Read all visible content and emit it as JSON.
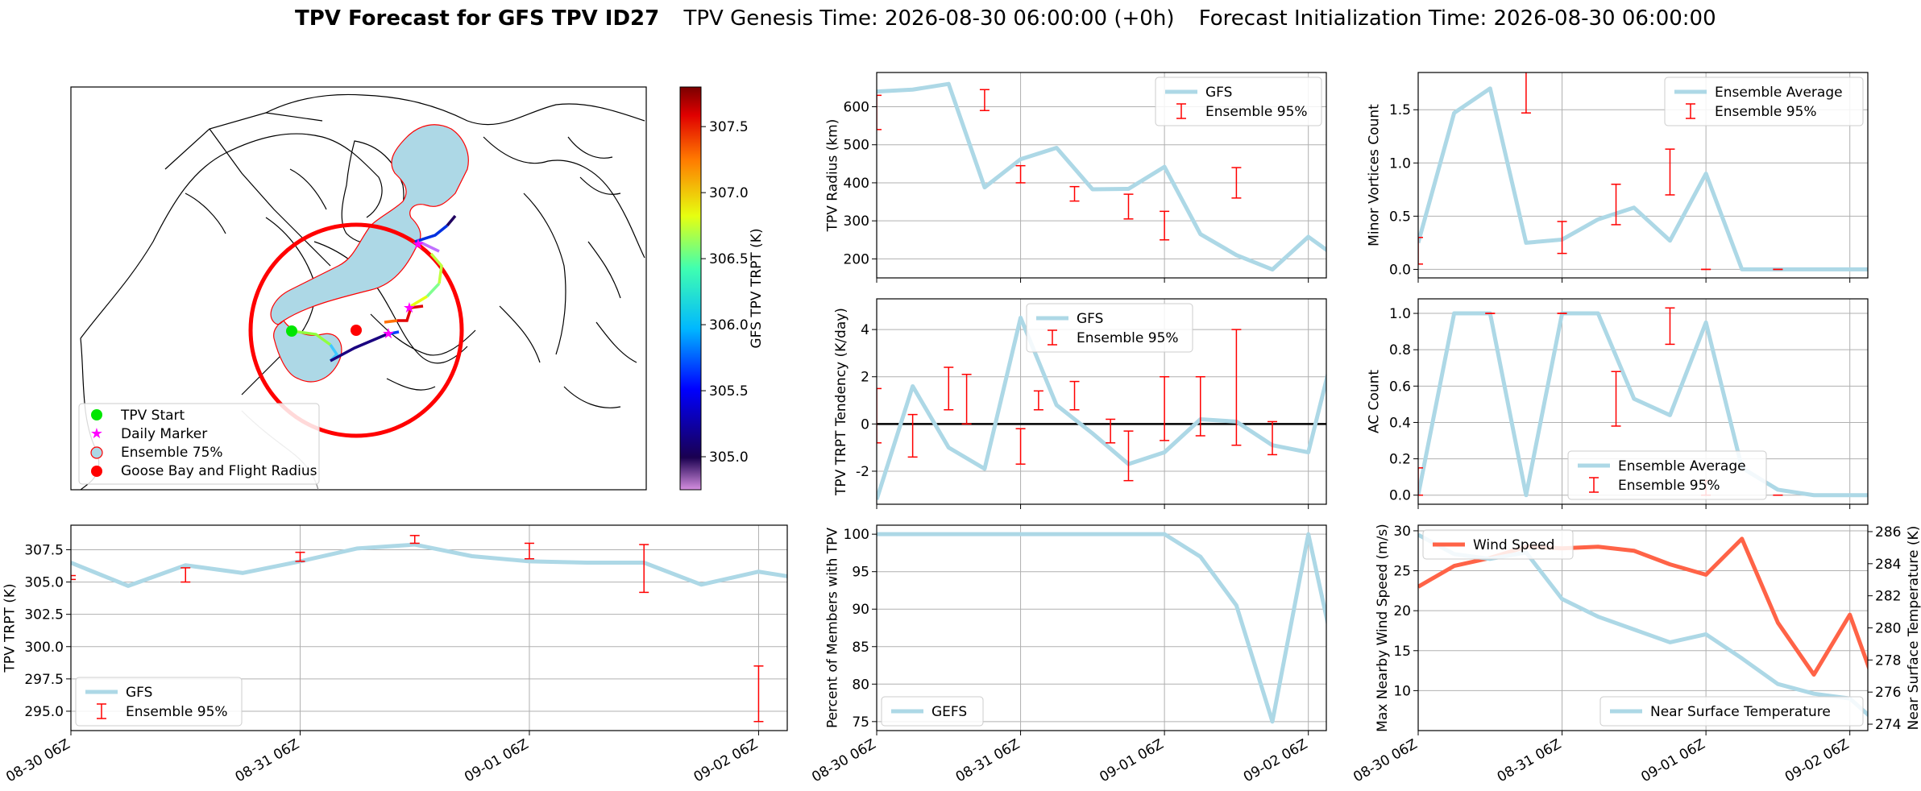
{
  "title": {
    "bold": "TPV Forecast for GFS TPV ID27",
    "genesis": "TPV Genesis Time: 2026-08-30 06:00:00 (+0h)",
    "init": "Forecast Initialization Time: 2026-08-30 06:00:00"
  },
  "colors": {
    "gfs": "#add8e6",
    "err": "#ff0000",
    "wind": "#ff6347",
    "temp_axis": "#4169e1",
    "zero": "#000000"
  },
  "map": {
    "legend": [
      "TPV Start",
      "Daily Marker",
      "Ensemble 75%",
      "Goose Bay and Flight Radius"
    ],
    "colorbar": {
      "label": "GFS TPV TRPT (K)",
      "ticks": [
        "305.0",
        "305.5",
        "306.0",
        "306.5",
        "307.0",
        "307.5"
      ],
      "range": [
        304.75,
        307.8
      ]
    }
  },
  "chart_data": [
    {
      "id": "radius",
      "type": "line",
      "ylabel": "TPV Radius (km)",
      "xlim": [
        0,
        12.5
      ],
      "ylim": [
        150,
        690
      ],
      "yticks": [
        200,
        300,
        400,
        500,
        600
      ],
      "xticks": [
        "08-30 06Z",
        "08-31 06Z",
        "09-01 06Z",
        "09-02 06Z"
      ],
      "legend": [
        "GFS",
        "Ensemble 95%"
      ],
      "legend_loc": "upper right",
      "series": [
        {
          "name": "GFS",
          "values": [
            640,
            645,
            660,
            388,
            462,
            492,
            383,
            384,
            442,
            265,
            210,
            172,
            258,
            190
          ]
        }
      ],
      "errorbars": [
        [
          0,
          540,
          630
        ],
        [
          3,
          590,
          645
        ],
        [
          4,
          400,
          445
        ],
        [
          5.5,
          352,
          390
        ],
        [
          7,
          305,
          370
        ],
        [
          8,
          250,
          325
        ],
        [
          10,
          360,
          440
        ]
      ]
    },
    {
      "id": "minor",
      "type": "line",
      "ylabel": "Minor Vortices Count",
      "xlim": [
        0,
        12.5
      ],
      "ylim": [
        -0.08,
        1.85
      ],
      "yticks": [
        0.0,
        0.5,
        1.0,
        1.5
      ],
      "xticks": [
        "08-30 06Z",
        "08-31 06Z",
        "09-01 06Z",
        "09-02 06Z"
      ],
      "legend": [
        "Ensemble Average",
        "Ensemble 95%"
      ],
      "legend_loc": "upper right",
      "series": [
        {
          "name": "Ensemble Average",
          "values": [
            0.25,
            1.47,
            1.7,
            0.25,
            0.28,
            0.47,
            0.58,
            0.27,
            0.9,
            0.0,
            0.0,
            0.0,
            0.0,
            0.0
          ]
        }
      ],
      "errorbars": [
        [
          0,
          0.05,
          0.3
        ],
        [
          3,
          1.47,
          1.88
        ],
        [
          4,
          0.15,
          0.45
        ],
        [
          5.5,
          0.42,
          0.8
        ],
        [
          7,
          0.7,
          1.13
        ],
        [
          8,
          0.0,
          0.0
        ],
        [
          10,
          0.0,
          0.0
        ]
      ]
    },
    {
      "id": "tendency",
      "type": "line",
      "ylabel": "TPV TRPT Tendency (K/day)",
      "xlim": [
        0,
        12.5
      ],
      "ylim": [
        -3.4,
        5.3
      ],
      "yticks": [
        -2,
        0,
        2,
        4
      ],
      "xticks": [
        "08-30 06Z",
        "08-31 06Z",
        "09-01 06Z",
        "09-02 06Z"
      ],
      "legend": [
        "GFS",
        "Ensemble 95%"
      ],
      "legend_loc": "upper center",
      "series": [
        {
          "name": "GFS",
          "values": [
            -3.2,
            1.6,
            -1.0,
            -1.9,
            4.5,
            0.8,
            -0.4,
            -1.7,
            -1.2,
            0.2,
            0.1,
            -0.9,
            -1.2,
            4.9
          ]
        }
      ],
      "errorbars": [
        [
          0,
          -0.8,
          1.5
        ],
        [
          1,
          -1.4,
          0.4
        ],
        [
          2,
          0.6,
          2.4
        ],
        [
          2.5,
          0.0,
          2.1
        ],
        [
          4,
          -1.7,
          -0.2
        ],
        [
          4.5,
          0.6,
          1.4
        ],
        [
          5.5,
          0.6,
          1.8
        ],
        [
          6.5,
          -0.8,
          0.2
        ],
        [
          7,
          -2.4,
          -0.3
        ],
        [
          8,
          -0.7,
          2.0
        ],
        [
          9,
          -0.5,
          2.0
        ],
        [
          10,
          -0.9,
          4.0
        ],
        [
          11,
          -1.3,
          0.1
        ]
      ]
    },
    {
      "id": "ac",
      "type": "line",
      "ylabel": "AC Count",
      "xlim": [
        0,
        12.5
      ],
      "ylim": [
        -0.05,
        1.08
      ],
      "yticks": [
        0.0,
        0.2,
        0.4,
        0.6,
        0.8,
        1.0
      ],
      "xticks": [
        "08-30 06Z",
        "08-31 06Z",
        "09-01 06Z",
        "09-02 06Z"
      ],
      "legend": [
        "Ensemble Average",
        "Ensemble 95%"
      ],
      "legend_loc": "lower center",
      "series": [
        {
          "name": "Ensemble Average",
          "values": [
            0.0,
            1.0,
            1.0,
            0.0,
            1.0,
            1.0,
            0.53,
            0.44,
            0.95,
            0.15,
            0.03,
            0.0,
            0.0,
            0.0
          ]
        }
      ],
      "errorbars": [
        [
          0,
          0.0,
          0.15
        ],
        [
          2,
          1.0,
          1.0
        ],
        [
          4,
          1.0,
          1.0
        ],
        [
          5.5,
          0.38,
          0.68
        ],
        [
          7,
          0.83,
          1.03
        ],
        [
          8,
          0.0,
          0.08
        ],
        [
          10,
          0.0,
          0.0
        ]
      ]
    },
    {
      "id": "trpt",
      "type": "line",
      "ylabel": "TPV TRPT (K)",
      "xlim": [
        0,
        12.5
      ],
      "ylim": [
        293.5,
        309.4
      ],
      "yticks": [
        295.0,
        297.5,
        300.0,
        302.5,
        305.0,
        307.5
      ],
      "xticks": [
        "08-30 06Z",
        "08-31 06Z",
        "09-01 06Z",
        "09-02 06Z"
      ],
      "legend": [
        "GFS",
        "Ensemble 95%"
      ],
      "legend_loc": "lower left",
      "series": [
        {
          "name": "GFS",
          "values": [
            306.5,
            304.7,
            306.3,
            305.7,
            306.6,
            307.6,
            307.9,
            307.0,
            306.6,
            306.5,
            306.5,
            304.8,
            305.8,
            305.1
          ]
        }
      ],
      "errorbars": [
        [
          0,
          305.2,
          305.5
        ],
        [
          2,
          305.0,
          306.1
        ],
        [
          4,
          306.6,
          307.3
        ],
        [
          6,
          308.0,
          308.6
        ],
        [
          8,
          306.8,
          308.0
        ],
        [
          10,
          304.2,
          307.9
        ],
        [
          12,
          294.2,
          298.5
        ]
      ]
    },
    {
      "id": "members",
      "type": "line",
      "ylabel": "Percent of Members with TPV",
      "xlim": [
        0,
        12.5
      ],
      "ylim": [
        73.8,
        101.2
      ],
      "yticks": [
        75,
        80,
        85,
        90,
        95,
        100
      ],
      "xticks": [
        "08-30 06Z",
        "08-31 06Z",
        "09-01 06Z",
        "09-02 06Z"
      ],
      "legend": [
        "GEFS"
      ],
      "legend_loc": "lower left",
      "series": [
        {
          "name": "GEFS",
          "values": [
            100,
            100,
            100,
            100,
            100,
            100,
            100,
            100,
            100,
            97,
            90.5,
            75,
            100,
            78
          ]
        }
      ],
      "errorbars": []
    },
    {
      "id": "wind",
      "type": "line",
      "ylabel": "Max Nearby Wind Speed (m/s)",
      "y2label": "Near Surface Temperature (K)",
      "xlim": [
        0,
        12.5
      ],
      "ylim": [
        5,
        30.7
      ],
      "y2lim": [
        273.6,
        286.4
      ],
      "yticks": [
        10,
        15,
        20,
        25,
        30
      ],
      "y2ticks": [
        274,
        276,
        278,
        280,
        282,
        284,
        286
      ],
      "xticks": [
        "08-30 06Z",
        "08-31 06Z",
        "09-01 06Z",
        "09-02 06Z"
      ],
      "legend": [
        "Wind Speed"
      ],
      "legend2": [
        "Near Surface Temperature"
      ],
      "series": [
        {
          "name": "Wind Speed",
          "axis": "left",
          "values": [
            23.0,
            25.6,
            26.6,
            28.0,
            27.8,
            28.0,
            27.5,
            25.8,
            24.5,
            29.0,
            18.5,
            12.0,
            19.5,
            7.0
          ]
        },
        {
          "name": "Near Surface Temperature",
          "axis": "right",
          "values": [
            285.8,
            284.6,
            284.3,
            284.7,
            281.8,
            280.7,
            279.9,
            279.1,
            279.6,
            278.1,
            276.5,
            275.9,
            275.6,
            273.6
          ]
        }
      ]
    }
  ]
}
